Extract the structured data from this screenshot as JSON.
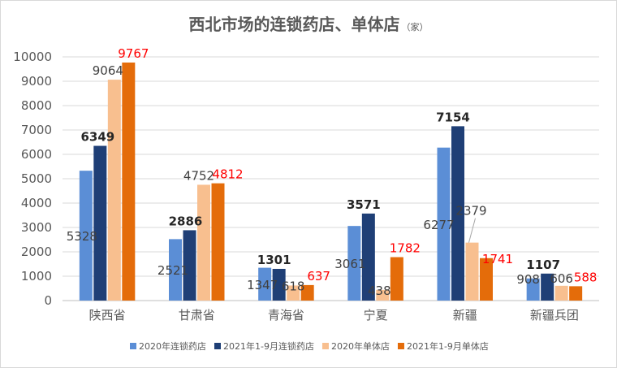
{
  "chart_data": {
    "type": "bar",
    "title": "西北市场的连锁药店、单体店",
    "unit": "（家）",
    "categories": [
      "陕西省",
      "甘肃省",
      "青海省",
      "宁夏",
      "新疆",
      "新疆兵团"
    ],
    "ylim": [
      0,
      10000
    ],
    "yticks": [
      0,
      1000,
      2000,
      3000,
      4000,
      5000,
      6000,
      7000,
      8000,
      9000,
      10000
    ],
    "grid": true,
    "legend_position": "bottom",
    "series": [
      {
        "name": "2020年连锁药店",
        "color": "#5b8ed6",
        "label_color": "#404040",
        "label_bold": false,
        "values": [
          5328,
          2521,
          1347,
          3061,
          6277,
          908
        ]
      },
      {
        "name": "2021年1-9月连锁药店",
        "color": "#1f3f76",
        "label_color": "#262626",
        "label_bold": true,
        "values": [
          6349,
          2886,
          1301,
          3571,
          7154,
          1107
        ]
      },
      {
        "name": "2020年单体店",
        "color": "#f8bf8f",
        "label_color": "#404040",
        "label_bold": false,
        "values": [
          9064,
          4752,
          618,
          438,
          2379,
          606
        ]
      },
      {
        "name": "2021年1-9月单体店",
        "color": "#e46c0a",
        "label_color": "#ff0000",
        "label_bold": false,
        "values": [
          9767,
          4812,
          637,
          1782,
          1741,
          588
        ]
      }
    ]
  }
}
